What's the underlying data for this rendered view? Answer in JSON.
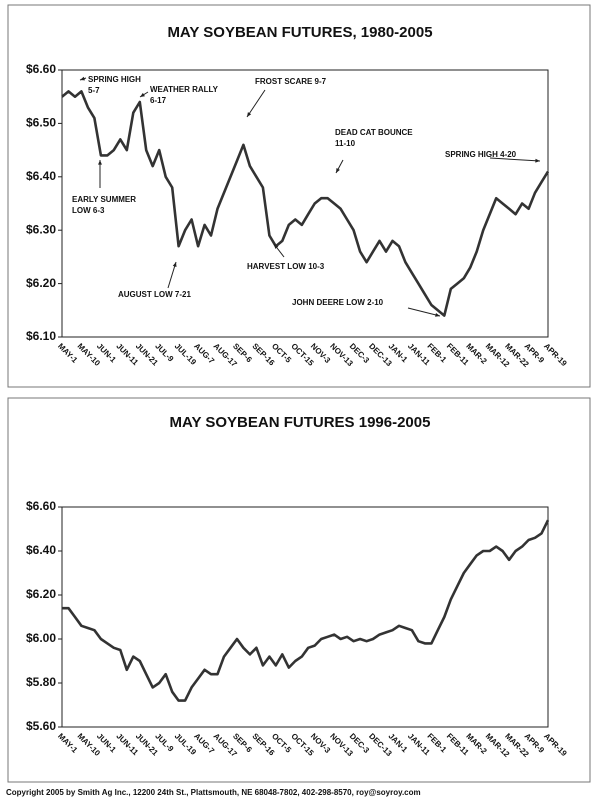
{
  "chart_data": [
    {
      "type": "line",
      "title": "MAY SOYBEAN FUTURES, 1980-2005",
      "categories": [
        "MAY-1",
        null,
        null,
        "MAY-10",
        null,
        null,
        "JUN-1",
        null,
        null,
        "JUN-11",
        null,
        null,
        "JUN-21",
        null,
        null,
        "JUL-9",
        null,
        null,
        "JUL-19",
        null,
        null,
        "AUG-7",
        null,
        null,
        "AUG-17",
        null,
        null,
        "SEP-6",
        null,
        null,
        "SEP-16",
        null,
        null,
        "OCT-5",
        null,
        null,
        "OCT-15",
        null,
        null,
        "NOV-3",
        null,
        null,
        "NOV-13",
        null,
        null,
        "DEC-3",
        null,
        null,
        "DEC-13",
        null,
        null,
        "JAN-1",
        null,
        null,
        "JAN-11",
        null,
        null,
        "FEB-1",
        null,
        null,
        "FEB-11",
        null,
        null,
        "MAR-2",
        null,
        null,
        "MAR-12",
        null,
        null,
        "MAR-22",
        null,
        null,
        "APR-9",
        null,
        null,
        "APR-19"
      ],
      "values": [
        6.55,
        6.56,
        6.55,
        6.56,
        6.53,
        6.51,
        6.44,
        6.44,
        6.45,
        6.47,
        6.45,
        6.52,
        6.54,
        6.45,
        6.42,
        6.45,
        6.4,
        6.38,
        6.27,
        6.3,
        6.32,
        6.27,
        6.31,
        6.29,
        6.34,
        6.37,
        6.4,
        6.43,
        6.46,
        6.42,
        6.4,
        6.38,
        6.29,
        6.27,
        6.28,
        6.31,
        6.32,
        6.31,
        6.33,
        6.35,
        6.36,
        6.36,
        6.35,
        6.34,
        6.32,
        6.3,
        6.26,
        6.24,
        6.26,
        6.28,
        6.26,
        6.28,
        6.27,
        6.24,
        6.22,
        6.2,
        6.18,
        6.16,
        6.15,
        6.14,
        6.19,
        6.2,
        6.21,
        6.23,
        6.26,
        6.3,
        6.33,
        6.36,
        6.35,
        6.34,
        6.33,
        6.35,
        6.34,
        6.37,
        6.39,
        6.41
      ],
      "color": "#333333",
      "ylim": [
        6.1,
        6.6
      ],
      "yticks": [
        {
          "value": 6.6,
          "label": "$6.60"
        },
        {
          "value": 6.5,
          "label": "$6.50"
        },
        {
          "value": 6.4,
          "label": "$6.40"
        },
        {
          "value": 6.3,
          "label": "$6.30"
        },
        {
          "value": 6.2,
          "label": "$6.20"
        },
        {
          "value": 6.1,
          "label": "$6.10"
        }
      ],
      "grid": false,
      "annotations": [
        {
          "lines": [
            "SPRING HIGH",
            "5-7"
          ]
        },
        {
          "lines": [
            "WEATHER RALLY",
            "6-17"
          ]
        },
        {
          "lines": [
            "FROST SCARE 9-7"
          ]
        },
        {
          "lines": [
            "DEAD CAT BOUNCE",
            "11-10"
          ]
        },
        {
          "lines": [
            "SPRING HIGH 4-20"
          ]
        },
        {
          "lines": [
            "EARLY SUMMER",
            "LOW 6-3"
          ]
        },
        {
          "lines": [
            "AUGUST LOW 7-21"
          ]
        },
        {
          "lines": [
            "HARVEST LOW 10-3"
          ]
        },
        {
          "lines": [
            "JOHN DEERE LOW 2-10"
          ]
        }
      ]
    },
    {
      "type": "line",
      "title": "MAY SOYBEAN FUTURES 1996-2005",
      "categories": [
        "MAY-1",
        null,
        null,
        "MAY-10",
        null,
        null,
        "JUN-1",
        null,
        null,
        "JUN-11",
        null,
        null,
        "JUN-21",
        null,
        null,
        "JUL-9",
        null,
        null,
        "JUL-19",
        null,
        null,
        "AUG-7",
        null,
        null,
        "AUG-17",
        null,
        null,
        "SEP-6",
        null,
        null,
        "SEP-16",
        null,
        null,
        "OCT-5",
        null,
        null,
        "OCT-15",
        null,
        null,
        "NOV-3",
        null,
        null,
        "NOV-13",
        null,
        null,
        "DEC-3",
        null,
        null,
        "DEC-13",
        null,
        null,
        "JAN-1",
        null,
        null,
        "JAN-11",
        null,
        null,
        "FEB-1",
        null,
        null,
        "FEB-11",
        null,
        null,
        "MAR-2",
        null,
        null,
        "MAR-12",
        null,
        null,
        "MAR-22",
        null,
        null,
        "APR-9",
        null,
        null,
        "APR-19"
      ],
      "values": [
        6.14,
        6.14,
        6.1,
        6.06,
        6.05,
        6.04,
        6.0,
        5.98,
        5.96,
        5.95,
        5.86,
        5.92,
        5.9,
        5.84,
        5.78,
        5.8,
        5.84,
        5.76,
        5.72,
        5.72,
        5.78,
        5.82,
        5.86,
        5.84,
        5.84,
        5.92,
        5.96,
        6.0,
        5.96,
        5.93,
        5.96,
        5.88,
        5.92,
        5.88,
        5.93,
        5.87,
        5.9,
        5.92,
        5.96,
        5.97,
        6.0,
        6.01,
        6.02,
        6.0,
        6.01,
        5.99,
        6.0,
        5.99,
        6.0,
        6.02,
        6.03,
        6.04,
        6.06,
        6.05,
        6.04,
        5.99,
        5.98,
        5.98,
        6.04,
        6.1,
        6.18,
        6.24,
        6.3,
        6.34,
        6.38,
        6.4,
        6.4,
        6.42,
        6.4,
        6.36,
        6.4,
        6.42,
        6.45,
        6.46,
        6.48,
        6.54
      ],
      "color": "#333333",
      "ylim": [
        5.6,
        6.6
      ],
      "yticks": [
        {
          "value": 6.6,
          "label": "$6.60"
        },
        {
          "value": 6.4,
          "label": "$6.40"
        },
        {
          "value": 6.2,
          "label": "$6.20"
        },
        {
          "value": 6.0,
          "label": "$6.00"
        },
        {
          "value": 5.8,
          "label": "$5.80"
        },
        {
          "value": 5.6,
          "label": "$5.60"
        }
      ],
      "grid": false
    }
  ],
  "footer": "Copyright 2005 by Smith Ag Inc., 12200 24th St., Plattsmouth, NE 68048-7802, 402-298-8570, roy@soyroy.com"
}
